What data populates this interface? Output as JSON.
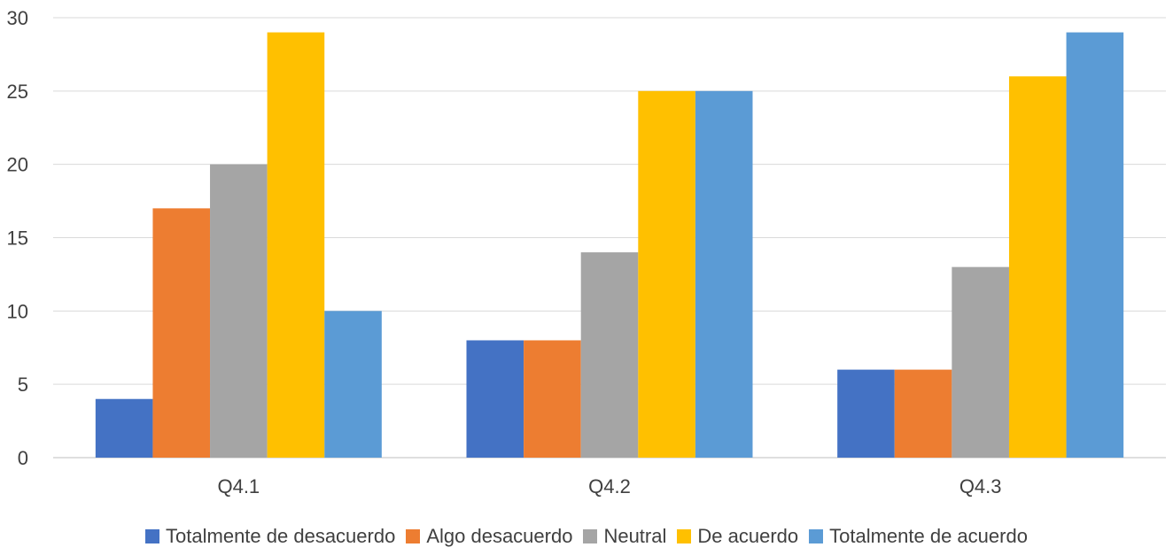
{
  "colors": {
    "background": "#ffffff",
    "grid": "#d9d9d9",
    "text": "#404040"
  },
  "chart_data": {
    "type": "bar",
    "title": "",
    "xlabel": "",
    "ylabel": "",
    "ylim": [
      0,
      30
    ],
    "yticks": [
      "0",
      "5",
      "10",
      "15",
      "20",
      "25",
      "30"
    ],
    "grid": true,
    "legend_position": "bottom",
    "categories": [
      "Q4.1",
      "Q4.2",
      "Q4.3"
    ],
    "series": [
      {
        "name": "Totalmente de desacuerdo",
        "color": "#4472c4",
        "values": [
          4,
          8,
          6
        ]
      },
      {
        "name": "Algo desacuerdo",
        "color": "#ed7d31",
        "values": [
          17,
          8,
          6
        ]
      },
      {
        "name": "Neutral",
        "color": "#a5a5a5",
        "values": [
          20,
          14,
          13
        ]
      },
      {
        "name": "De acuerdo",
        "color": "#ffc000",
        "values": [
          29,
          25,
          26
        ]
      },
      {
        "name": "Totalmente de acuerdo",
        "color": "#5b9bd5",
        "values": [
          10,
          25,
          29
        ]
      }
    ]
  }
}
